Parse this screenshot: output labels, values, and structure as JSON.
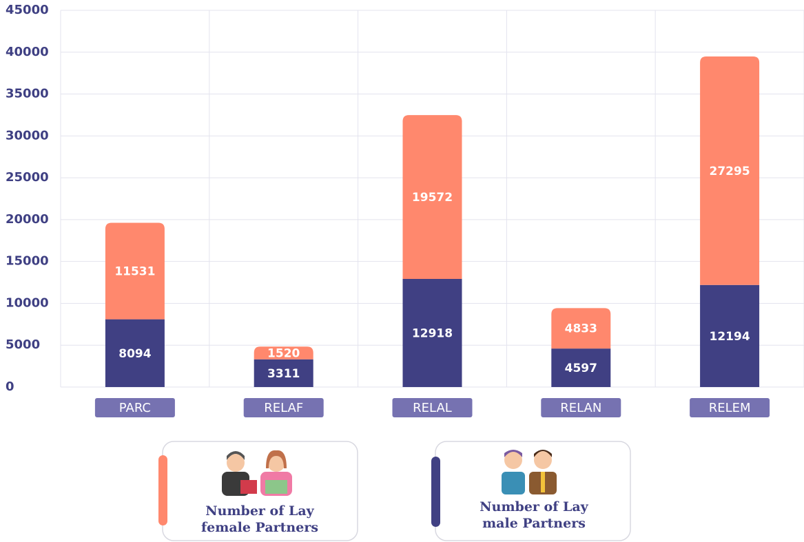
{
  "chart_data": {
    "type": "stacked_bar",
    "categories": [
      "PARC",
      "RELAF",
      "RELAL",
      "RELAN",
      "RELEM"
    ],
    "series": [
      {
        "name": "Number of Lay male Partners",
        "color": "#404083",
        "values": [
          8094,
          3311,
          12918,
          4597,
          12194
        ]
      },
      {
        "name": "Number of Lay female Partners",
        "color": "#ff886d",
        "values": [
          11531,
          1520,
          19572,
          4833,
          27295
        ]
      }
    ],
    "ylim": [
      0,
      45000
    ],
    "yticks": [
      0,
      5000,
      10000,
      15000,
      20000,
      25000,
      30000,
      35000,
      40000,
      45000
    ],
    "grid": true
  }
}
